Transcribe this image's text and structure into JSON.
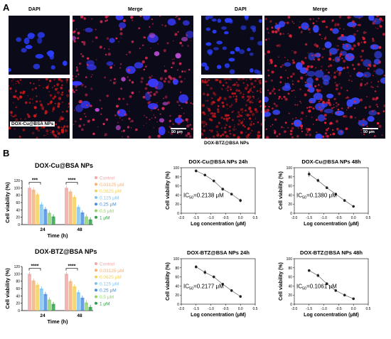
{
  "panel_a": {
    "letter": "A",
    "left": {
      "dapi_label": "DAPI",
      "merge_label": "Merge",
      "np_label": "DOX-Cu@BSA NPs",
      "scale_label": "50 μm"
    },
    "right": {
      "dapi_label": "DAPI",
      "merge_label": "Merge",
      "np_label": "DOX-BTZ@BSA NPs",
      "scale_label": "50 μm"
    }
  },
  "panel_b": {
    "letter": "B",
    "legend": [
      "Control",
      "0.03125 μM",
      "0.0625 μM",
      "0.125 μM",
      "0.25 μM",
      "0.5 μM",
      "1 μM"
    ],
    "legend_colors": [
      "#f4a6a6",
      "#f7b27a",
      "#f5d05c",
      "#7fc4f2",
      "#4a8fe0",
      "#8fd66a",
      "#2da34a"
    ]
  },
  "chart_data": [
    {
      "type": "bar",
      "title": "DOX-Cu@BSA NPs",
      "xlabel": "Time (h)",
      "ylabel": "Cell viability (%)",
      "categories": [
        "24",
        "48"
      ],
      "yticks": [
        "0",
        "20",
        "40",
        "60",
        "80",
        "100",
        "120"
      ],
      "ylim": [
        0,
        120
      ],
      "significance": [
        "***",
        "****"
      ],
      "series": [
        {
          "name": "Control",
          "values": [
            100,
            100
          ]
        },
        {
          "name": "0.03125 μM",
          "values": [
            95,
            90
          ]
        },
        {
          "name": "0.0625 μM",
          "values": [
            82,
            75
          ]
        },
        {
          "name": "0.125 μM",
          "values": [
            55,
            48
          ]
        },
        {
          "name": "0.25 μM",
          "values": [
            42,
            33
          ]
        },
        {
          "name": "0.5 μM",
          "values": [
            32,
            22
          ]
        },
        {
          "name": "1 μM",
          "values": [
            22,
            14
          ]
        }
      ]
    },
    {
      "type": "line",
      "title": "DOX-Cu@BSA NPs  24h",
      "xlabel": "Log concentration (μM)",
      "ylabel": "Cell viability (%)",
      "annotation": "IC50=0.2138 μM",
      "ann_main": "IC",
      "ann_sub": "50",
      "ann_rest": "=0.2138 μM",
      "xlim": [
        -2.0,
        0.5
      ],
      "ylim": [
        0,
        100
      ],
      "xticks": [
        "-2.0",
        "-1.5",
        "-1.0",
        "-0.5",
        "0.0",
        "0.5"
      ],
      "yticks": [
        "0",
        "20",
        "40",
        "60",
        "80",
        "100"
      ],
      "x": [
        -1.5,
        -1.2,
        -0.9,
        -0.6,
        -0.3,
        0.0
      ],
      "y": [
        93,
        84,
        71,
        53,
        42,
        28
      ],
      "err": [
        3,
        3,
        3,
        3,
        3,
        4
      ]
    },
    {
      "type": "line",
      "title": "DOX-Cu@BSA NPs  48h",
      "xlabel": "Log concentration (μM)",
      "ylabel": "Cell viability (%)",
      "annotation": "IC50=0.1380 μM",
      "ann_main": "IC",
      "ann_sub": "50",
      "ann_rest": "=0.1380 μM",
      "xlim": [
        -2.0,
        0.5
      ],
      "ylim": [
        0,
        100
      ],
      "xticks": [
        "-2.0",
        "-1.5",
        "-1.0",
        "-0.5",
        "0.0",
        "0.5"
      ],
      "yticks": [
        "0",
        "20",
        "40",
        "60",
        "80",
        "100"
      ],
      "x": [
        -1.5,
        -1.2,
        -0.9,
        -0.6,
        -0.3,
        0.0
      ],
      "y": [
        86,
        72,
        56,
        42,
        28,
        15
      ],
      "err": [
        6,
        4,
        3,
        3,
        3,
        2
      ]
    },
    {
      "type": "bar",
      "title": "DOX-BTZ@BSA NPs",
      "xlabel": "Time (h)",
      "ylabel": "Cell viability (%)",
      "categories": [
        "24",
        "48"
      ],
      "yticks": [
        "0",
        "20",
        "40",
        "60",
        "80",
        "100",
        "120"
      ],
      "ylim": [
        0,
        120
      ],
      "significance": [
        "****",
        "****"
      ],
      "series": [
        {
          "name": "Control",
          "values": [
            100,
            100
          ]
        },
        {
          "name": "0.03125 μM",
          "values": [
            82,
            80
          ]
        },
        {
          "name": "0.0625 μM",
          "values": [
            70,
            66
          ]
        },
        {
          "name": "0.125 μM",
          "values": [
            60,
            50
          ]
        },
        {
          "name": "0.25 μM",
          "values": [
            45,
            35
          ]
        },
        {
          "name": "0.5 μM",
          "values": [
            30,
            22
          ]
        },
        {
          "name": "1 μM",
          "values": [
            18,
            10
          ]
        }
      ]
    },
    {
      "type": "line",
      "title": "DOX-BTZ@BSA NPs 24h",
      "xlabel": "Log concentration (μM)",
      "ylabel": "Cell viability (%)",
      "annotation": "IC50=0.2177 μM",
      "ann_main": "IC",
      "ann_sub": "50",
      "ann_rest": "=0.2177 μM",
      "xlim": [
        -2.0,
        0.5
      ],
      "ylim": [
        0,
        100
      ],
      "xticks": [
        "-2.0",
        "-1.5",
        "-1.0",
        "-0.5",
        "0.0",
        "0.5"
      ],
      "yticks": [
        "0",
        "20",
        "40",
        "60",
        "80",
        "100"
      ],
      "x": [
        -1.5,
        -1.2,
        -0.9,
        -0.6,
        -0.3,
        0.0
      ],
      "y": [
        82,
        70,
        60,
        44,
        30,
        17
      ],
      "err": [
        4,
        5,
        3,
        3,
        3,
        3
      ]
    },
    {
      "type": "line",
      "title": "DOX-BTZ@BSA NPs 48h",
      "xlabel": "Log concentration (μM)",
      "ylabel": "Cell viability (%)",
      "annotation": "IC50=0.1061 μM",
      "ann_main": "IC",
      "ann_sub": "50",
      "ann_rest": "=0.1061 μM",
      "xlim": [
        -2.0,
        0.5
      ],
      "ylim": [
        0,
        100
      ],
      "xticks": [
        "-2.0",
        "-1.5",
        "-1.0",
        "-0.5",
        "0.0",
        "0.5"
      ],
      "yticks": [
        "0",
        "20",
        "40",
        "60",
        "80",
        "100"
      ],
      "x": [
        -1.5,
        -1.2,
        -0.9,
        -0.6,
        -0.3,
        0.0
      ],
      "y": [
        74,
        63,
        45,
        30,
        20,
        12
      ],
      "err": [
        3,
        4,
        3,
        3,
        2,
        2
      ]
    }
  ]
}
